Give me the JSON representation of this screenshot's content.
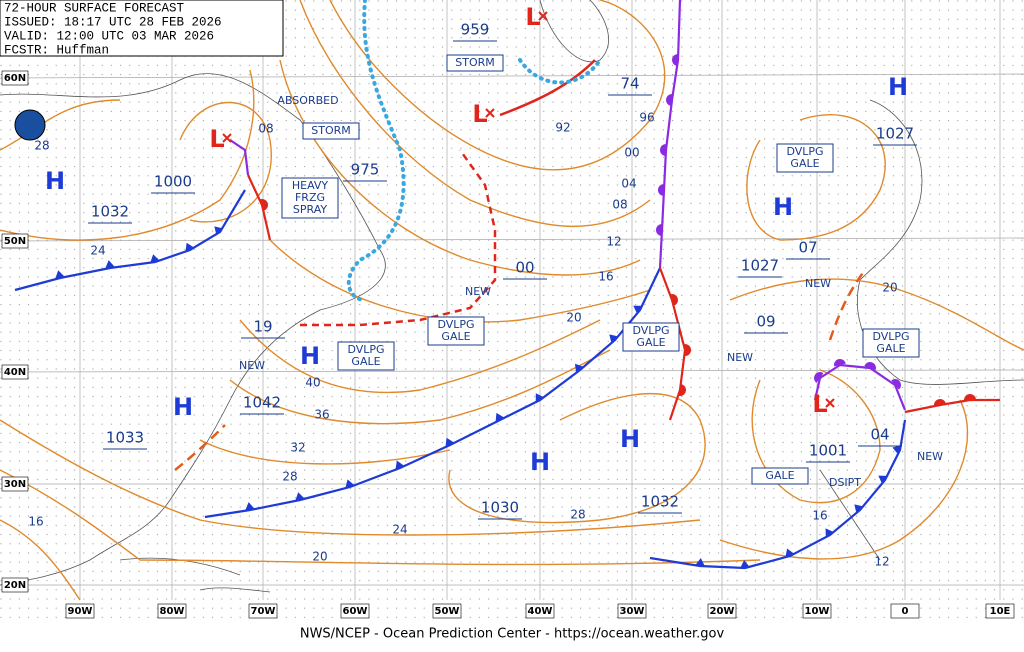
{
  "header": {
    "lines": [
      "72-HOUR SURFACE FORECAST",
      "ISSUED: 18:17 UTC 28 FEB 2026",
      "VALID:  12:00 UTC 03 MAR 2026",
      "FCSTR:  Huffman"
    ]
  },
  "footer": "NWS/NCEP - Ocean Prediction Center - https://ocean.weather.gov",
  "lat_labels": [
    "60N",
    "50N",
    "40N",
    "30N",
    "20N"
  ],
  "lon_labels": [
    "90W",
    "80W",
    "70W",
    "60W",
    "50W",
    "40W",
    "30W",
    "20W",
    "10W",
    "0",
    "10E"
  ],
  "highs": [
    "H",
    "H",
    "H",
    "H",
    "H",
    "H",
    "H"
  ],
  "lows": [
    "L",
    "L",
    "L",
    "L"
  ],
  "pressures": [
    "1000",
    "1032",
    "975",
    "959",
    "74",
    "00",
    "1027",
    "1027",
    "07",
    "09",
    "19",
    "1042",
    "1033",
    "1030",
    "1032",
    "1001",
    "04"
  ],
  "isobar_labels": [
    "28",
    "08",
    "24",
    "92",
    "96",
    "00",
    "04",
    "08",
    "12",
    "16",
    "20",
    "40",
    "36",
    "32",
    "28",
    "24",
    "28",
    "20",
    "16",
    "16",
    "12",
    "20"
  ],
  "boxes": [
    {
      "lines": [
        "STORM"
      ]
    },
    {
      "lines": [
        "STORM"
      ]
    },
    {
      "lines": [
        "HEAVY",
        "FRZG",
        "SPRAY"
      ]
    },
    {
      "lines": [
        "DVLPG",
        "GALE"
      ]
    },
    {
      "lines": [
        "DVLPG",
        "GALE"
      ]
    },
    {
      "lines": [
        "DVLPG",
        "GALE"
      ]
    },
    {
      "lines": [
        "DVLPG",
        "GALE"
      ]
    },
    {
      "lines": [
        "DVLPG",
        "GALE"
      ]
    },
    {
      "lines": [
        "GALE"
      ]
    }
  ],
  "notes": [
    "ABSORBED",
    "NEW",
    "NEW",
    "NEW",
    "NEW",
    "NEW",
    "DSIPT"
  ]
}
